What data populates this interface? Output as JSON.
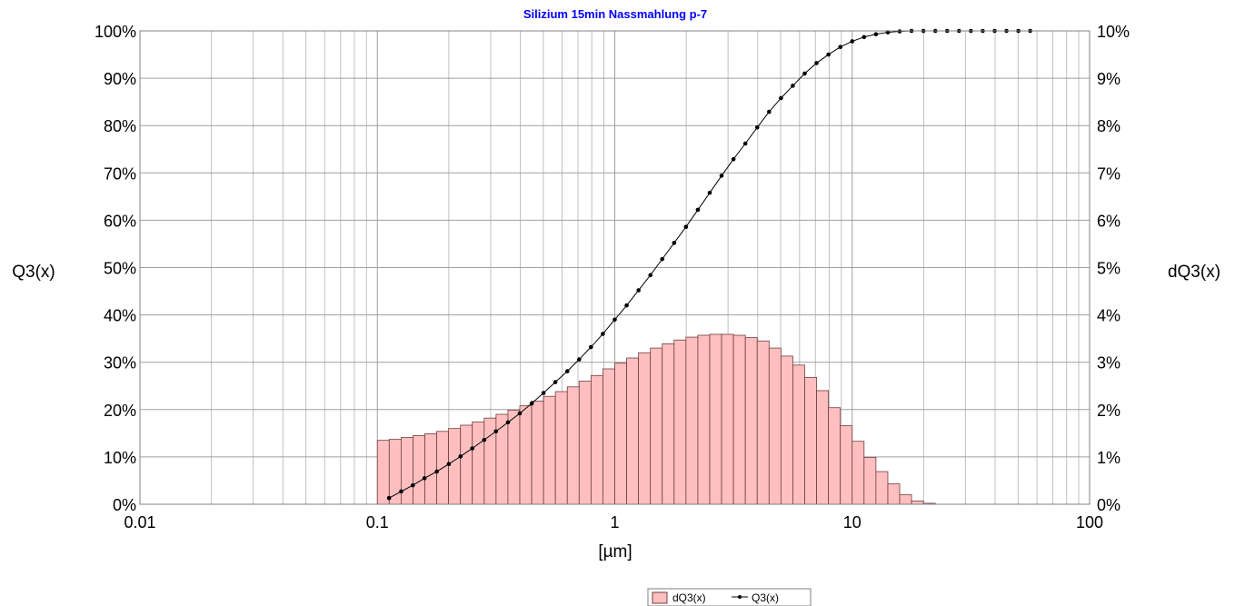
{
  "chart_data": {
    "type": "bar",
    "title": "Silizium 15min Nassmahlung p-7",
    "title_color": "#0000ff",
    "xlabel": "[µm]",
    "ylabel_left": "Q3(x)",
    "ylabel_right": "dQ3(x)",
    "x_scale": "log",
    "xlim": [
      0.01,
      100
    ],
    "x_tick_labels": [
      "0.01",
      "0.1",
      "1",
      "10",
      "100"
    ],
    "ylim_left": [
      0,
      100
    ],
    "y_left_tick_labels": [
      "0%",
      "10%",
      "20%",
      "30%",
      "40%",
      "50%",
      "60%",
      "70%",
      "80%",
      "90%",
      "100%"
    ],
    "ylim_right": [
      0,
      10
    ],
    "y_right_tick_labels": [
      "0%",
      "1%",
      "2%",
      "3%",
      "4%",
      "5%",
      "6%",
      "7%",
      "8%",
      "9%",
      "10%"
    ],
    "grid": true,
    "legend_position": "bottom-right",
    "bar_fill_color": "#ffbfbf",
    "bar_edge_color": "#6e3f3f",
    "line_color": "#000000",
    "series": [
      {
        "name": "dQ3(x)",
        "kind": "bar",
        "axis": "right",
        "bin_edges_x": [
          0.1,
          0.1122,
          0.1259,
          0.1413,
          0.1585,
          0.1778,
          0.1995,
          0.2239,
          0.2512,
          0.2818,
          0.3162,
          0.3548,
          0.3981,
          0.4467,
          0.5012,
          0.5623,
          0.631,
          0.7079,
          0.7943,
          0.8913,
          1.0,
          1.122,
          1.259,
          1.413,
          1.585,
          1.778,
          1.995,
          2.239,
          2.512,
          2.818,
          3.162,
          3.548,
          3.981,
          4.467,
          5.012,
          5.623,
          6.31,
          7.079,
          7.943,
          8.913,
          10.0,
          11.22,
          12.59,
          14.13,
          15.85,
          17.78,
          19.95,
          22.39,
          25.12
        ],
        "values": [
          1.35,
          1.37,
          1.41,
          1.45,
          1.49,
          1.54,
          1.6,
          1.67,
          1.74,
          1.82,
          1.9,
          1.99,
          2.08,
          2.18,
          2.28,
          2.38,
          2.48,
          2.6,
          2.72,
          2.86,
          2.98,
          3.09,
          3.2,
          3.3,
          3.39,
          3.47,
          3.53,
          3.57,
          3.59,
          3.59,
          3.57,
          3.52,
          3.45,
          3.3,
          3.13,
          2.94,
          2.68,
          2.4,
          2.04,
          1.66,
          1.33,
          0.99,
          0.69,
          0.43,
          0.2,
          0.07,
          0.02,
          0.0
        ]
      },
      {
        "name": "Q3(x)",
        "kind": "line",
        "axis": "left",
        "x": [
          0.112,
          0.126,
          0.141,
          0.158,
          0.178,
          0.2,
          0.224,
          0.251,
          0.282,
          0.316,
          0.355,
          0.398,
          0.447,
          0.501,
          0.562,
          0.631,
          0.708,
          0.794,
          0.891,
          1.0,
          1.122,
          1.259,
          1.413,
          1.585,
          1.778,
          1.995,
          2.239,
          2.512,
          2.818,
          3.162,
          3.548,
          3.981,
          4.467,
          5.012,
          5.623,
          6.31,
          7.079,
          7.943,
          8.913,
          10.0,
          11.22,
          12.59,
          14.13,
          15.85,
          17.78,
          19.95,
          22.39,
          25.12,
          28.18,
          31.62,
          35.48,
          39.81,
          44.67,
          50.12,
          56.23
        ],
        "values": [
          1.3,
          2.7,
          4.0,
          5.5,
          6.9,
          8.5,
          10.1,
          11.8,
          13.6,
          15.4,
          17.3,
          19.2,
          21.3,
          23.5,
          25.8,
          28.1,
          30.6,
          33.2,
          36.0,
          39.0,
          42.0,
          45.2,
          48.4,
          51.8,
          55.2,
          58.6,
          62.2,
          65.8,
          69.4,
          72.9,
          76.2,
          79.6,
          82.9,
          85.8,
          88.4,
          91.0,
          93.2,
          95.0,
          96.6,
          97.8,
          98.7,
          99.3,
          99.7,
          99.9,
          100.0,
          100.0,
          100.0,
          100.0,
          100.0,
          100.0,
          100.0,
          100.0,
          100.0,
          100.0,
          100.0
        ]
      }
    ]
  }
}
